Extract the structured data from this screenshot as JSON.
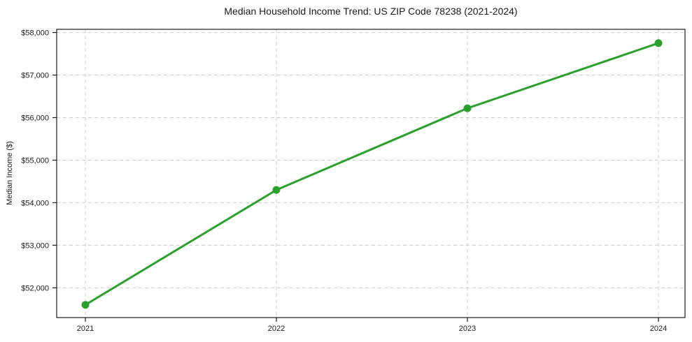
{
  "chart_data": {
    "type": "line",
    "title": "Median Household Income Trend: US ZIP Code 78238 (2021-2024)",
    "xlabel": "",
    "ylabel": "Median Income ($)",
    "categories": [
      "2021",
      "2022",
      "2023",
      "2024"
    ],
    "series": [
      {
        "name": "Median household income",
        "values": [
          51600,
          54300,
          56220,
          57750
        ]
      }
    ],
    "ylim": [
      51300,
      58075
    ],
    "yticks": [
      52000,
      53000,
      54000,
      55000,
      56000,
      57000,
      58000
    ],
    "ytick_labels": [
      "$52,000",
      "$53,000",
      "$54,000",
      "$55,000",
      "$56,000",
      "$57,000",
      "$58,000"
    ],
    "grid": true,
    "grid_style": "dashed",
    "legend_position": "none",
    "marker": "circle",
    "colors": {
      "line": "#2ca02c",
      "marker": "#2ca02c",
      "grid": "#cccccc",
      "axis": "#1a1a1a",
      "text": "#1a1a1a",
      "background": "#ffffff"
    }
  }
}
